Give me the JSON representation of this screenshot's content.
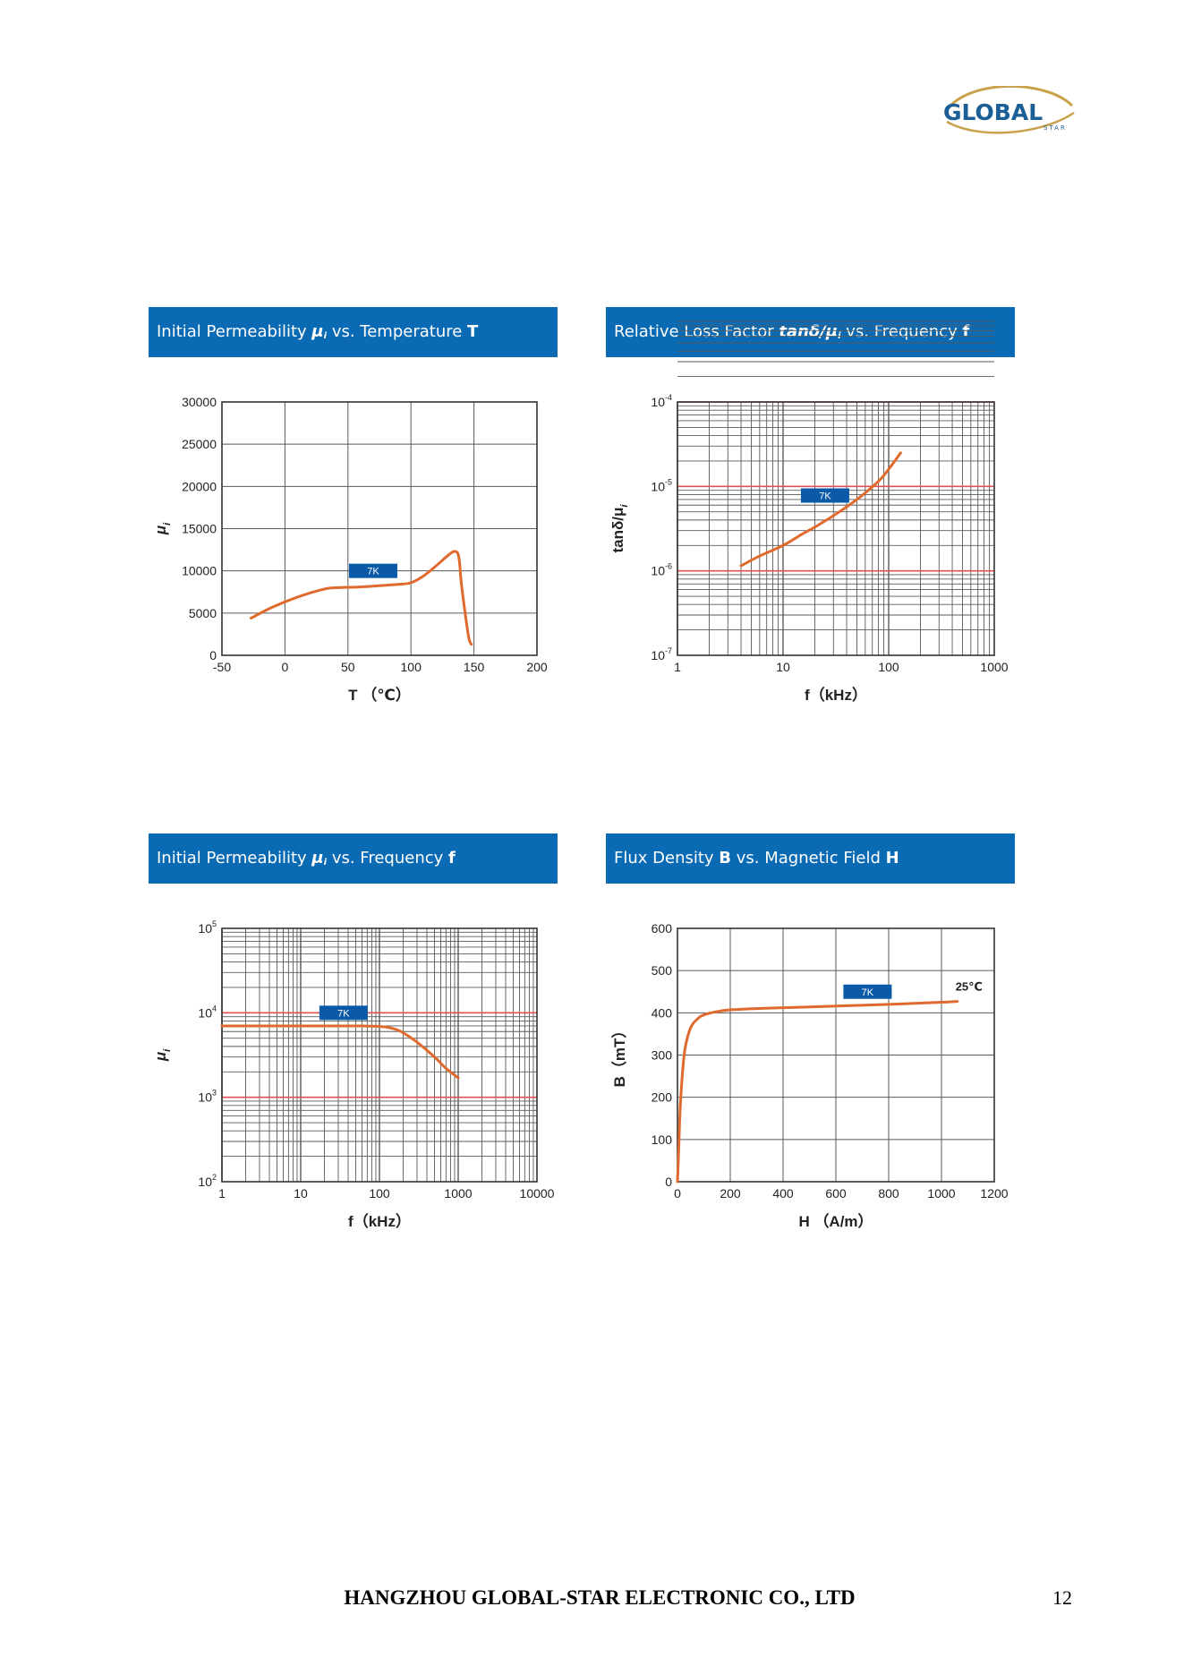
{
  "logo": {
    "brand": "GLOBAL",
    "sub": "STAR"
  },
  "footer": {
    "company": "HANGZHOU GLOBAL-STAR ELECTRONIC CO., LTD",
    "page": "12"
  },
  "colors": {
    "header_bg": "#0a6ab4",
    "curve": "#e06a2e",
    "label_bg": "#0a5aa8",
    "grid": "#5a5a5a",
    "decade_line": "#e05050"
  },
  "chart_data": [
    {
      "type": "line",
      "title": {
        "prefix": "Initial Permeability ",
        "symbol": "μ",
        "symbol_sub": "i",
        "middle": " vs. Temperature ",
        "var": "T"
      },
      "xlabel": "T （℃）",
      "ylabel": "μ",
      "ylabel_sub": "i",
      "xscale": "linear",
      "yscale": "linear",
      "xlim": [
        -50,
        200
      ],
      "ylim": [
        0,
        30000
      ],
      "xticks": [
        "-50",
        "0",
        "50",
        "100",
        "150",
        "200"
      ],
      "yticks": [
        "0",
        "5000",
        "10000",
        "15000",
        "20000",
        "25000",
        "30000"
      ],
      "grid": true,
      "series": [
        {
          "name": "7K",
          "x": [
            -27,
            -10,
            10,
            30,
            40,
            60,
            80,
            90,
            100,
            110,
            120,
            130,
            135,
            138,
            140,
            143,
            146,
            148
          ],
          "y": [
            4400,
            5700,
            6900,
            7800,
            8000,
            8100,
            8300,
            8400,
            8600,
            9400,
            10600,
            11900,
            12300,
            11600,
            8500,
            5000,
            2000,
            1300
          ]
        }
      ],
      "label_box": {
        "text": "7K",
        "x": 70,
        "y": 10000
      }
    },
    {
      "type": "line",
      "title": {
        "prefix": "Relative Loss Factor ",
        "symbol": "tanδ/μ",
        "symbol_sub": "i",
        "middle": " vs. Frequency ",
        "var": "f"
      },
      "xlabel": "f（kHz）",
      "ylabel": "tanδ/μ",
      "ylabel_sub": "i",
      "xscale": "log",
      "yscale": "log",
      "xlim": [
        1,
        1000
      ],
      "ylim": [
        1e-07,
        0.0001
      ],
      "xticks": [
        "1",
        "10",
        "100",
        "1000"
      ],
      "yticks": [
        {
          "base": "10",
          "exp": "-7"
        },
        {
          "base": "10",
          "exp": "-6"
        },
        {
          "base": "10",
          "exp": "-5"
        },
        {
          "base": "10",
          "exp": "-4"
        }
      ],
      "grid": true,
      "series": [
        {
          "name": "7K",
          "x": [
            4,
            6,
            10,
            15,
            20,
            30,
            50,
            80,
            100,
            130
          ],
          "y": [
            1.15e-06,
            1.5e-06,
            2e-06,
            2.7e-06,
            3.3e-06,
            4.5e-06,
            7e-06,
            1.15e-05,
            1.6e-05,
            2.5e-05
          ]
        }
      ],
      "label_box": {
        "text": "7K",
        "x": 25,
        "y": 7.8e-06
      }
    },
    {
      "type": "line",
      "title": {
        "prefix": "Initial Permeability ",
        "symbol": "μ",
        "symbol_sub": "i",
        "middle": " vs. Frequency ",
        "var": "f"
      },
      "xlabel": "f（kHz）",
      "ylabel": "μ",
      "ylabel_sub": "i",
      "xscale": "log",
      "yscale": "log",
      "xlim": [
        1,
        10000
      ],
      "ylim": [
        100,
        100000
      ],
      "xticks": [
        "1",
        "10",
        "100",
        "1000",
        "10000"
      ],
      "yticks": [
        {
          "base": "10",
          "exp": "2"
        },
        {
          "base": "10",
          "exp": "3"
        },
        {
          "base": "10",
          "exp": "4"
        },
        {
          "base": "10",
          "exp": "5"
        }
      ],
      "grid": true,
      "series": [
        {
          "name": "7K",
          "x": [
            1,
            10,
            50,
            100,
            150,
            200,
            300,
            500,
            700,
            1000
          ],
          "y": [
            7000,
            7000,
            7000,
            6900,
            6500,
            5800,
            4500,
            3000,
            2200,
            1700
          ]
        }
      ],
      "label_box": {
        "text": "7K",
        "x": 35,
        "y": 10000
      }
    },
    {
      "type": "line",
      "title": {
        "prefix": "Flux Density ",
        "symbol": "B",
        "symbol_sub": "",
        "middle": " vs. Magnetic Field ",
        "var": "H"
      },
      "xlabel": "H （A/m）",
      "ylabel": "B（mT）",
      "ylabel_sub": "",
      "xscale": "linear",
      "yscale": "linear",
      "xlim": [
        0,
        1200
      ],
      "ylim": [
        0,
        600
      ],
      "xticks": [
        "0",
        "200",
        "400",
        "600",
        "800",
        "1000",
        "1200"
      ],
      "yticks": [
        "0",
        "100",
        "200",
        "300",
        "400",
        "500",
        "600"
      ],
      "grid": true,
      "series": [
        {
          "name": "7K",
          "x": [
            0,
            5,
            10,
            20,
            30,
            50,
            75,
            100,
            150,
            200,
            300,
            400,
            600,
            800,
            1000,
            1060
          ],
          "y": [
            0,
            80,
            170,
            265,
            320,
            365,
            385,
            395,
            403,
            407,
            410,
            412,
            416,
            420,
            425,
            427
          ]
        }
      ],
      "label_box": {
        "text": "7K",
        "x": 720,
        "y": 450
      },
      "annotation": {
        "text": "25℃",
        "x": 1060,
        "y": 440
      }
    }
  ]
}
